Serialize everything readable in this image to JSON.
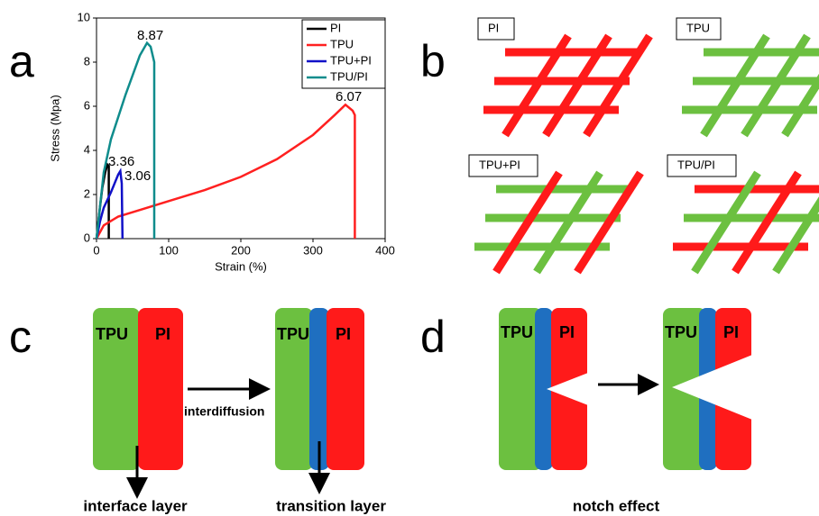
{
  "panel_labels": [
    "a",
    "b",
    "c",
    "d"
  ],
  "chart_data": {
    "type": "line",
    "xlabel": "Strain (%)",
    "ylabel": "Stress (Mpa)",
    "xlim": [
      0,
      400
    ],
    "ylim": [
      0,
      10
    ],
    "xticks": [
      0,
      100,
      200,
      300,
      400
    ],
    "yticks": [
      0,
      2,
      4,
      6,
      8,
      10
    ],
    "series": [
      {
        "name": "PI",
        "color": "#000000",
        "x": [
          0,
          4,
          8,
          12,
          15,
          17,
          17
        ],
        "values": [
          0,
          1.2,
          2.3,
          3.0,
          3.36,
          3.3,
          0
        ]
      },
      {
        "name": "TPU",
        "color": "#ff2020",
        "x": [
          0,
          10,
          30,
          60,
          100,
          150,
          200,
          250,
          300,
          330,
          345,
          355,
          358,
          358
        ],
        "values": [
          0,
          0.6,
          1.0,
          1.3,
          1.7,
          2.2,
          2.8,
          3.6,
          4.7,
          5.6,
          6.07,
          5.8,
          5.6,
          0
        ]
      },
      {
        "name": "TPU+PI",
        "color": "#1010c8",
        "x": [
          0,
          5,
          10,
          20,
          30,
          33,
          35,
          36
        ],
        "values": [
          0,
          0.8,
          1.4,
          2.1,
          2.9,
          3.06,
          2.5,
          0
        ]
      },
      {
        "name": "TPU/PI",
        "color": "#0f8c8c",
        "x": [
          0,
          5,
          10,
          20,
          40,
          60,
          70,
          75,
          80,
          80
        ],
        "values": [
          0,
          1.5,
          3,
          4.5,
          6.5,
          8.3,
          8.87,
          8.7,
          8,
          0
        ]
      }
    ],
    "annotations": [
      "8.87",
      "6.07",
      "3.36",
      "3.06"
    ]
  },
  "weave": {
    "labels": [
      "PI",
      "TPU",
      "TPU+PI",
      "TPU/PI"
    ]
  },
  "interface": {
    "before": {
      "left": "TPU",
      "right": "PI"
    },
    "arrow_label": "interdiffusion",
    "after": {
      "left": "TPU",
      "right": "PI"
    },
    "captions": [
      "interface layer",
      "transition layer"
    ]
  },
  "notch": {
    "before": {
      "left": "TPU",
      "right": "PI"
    },
    "after": {
      "left": "TPU",
      "right": "PI"
    },
    "caption": "notch effect"
  }
}
